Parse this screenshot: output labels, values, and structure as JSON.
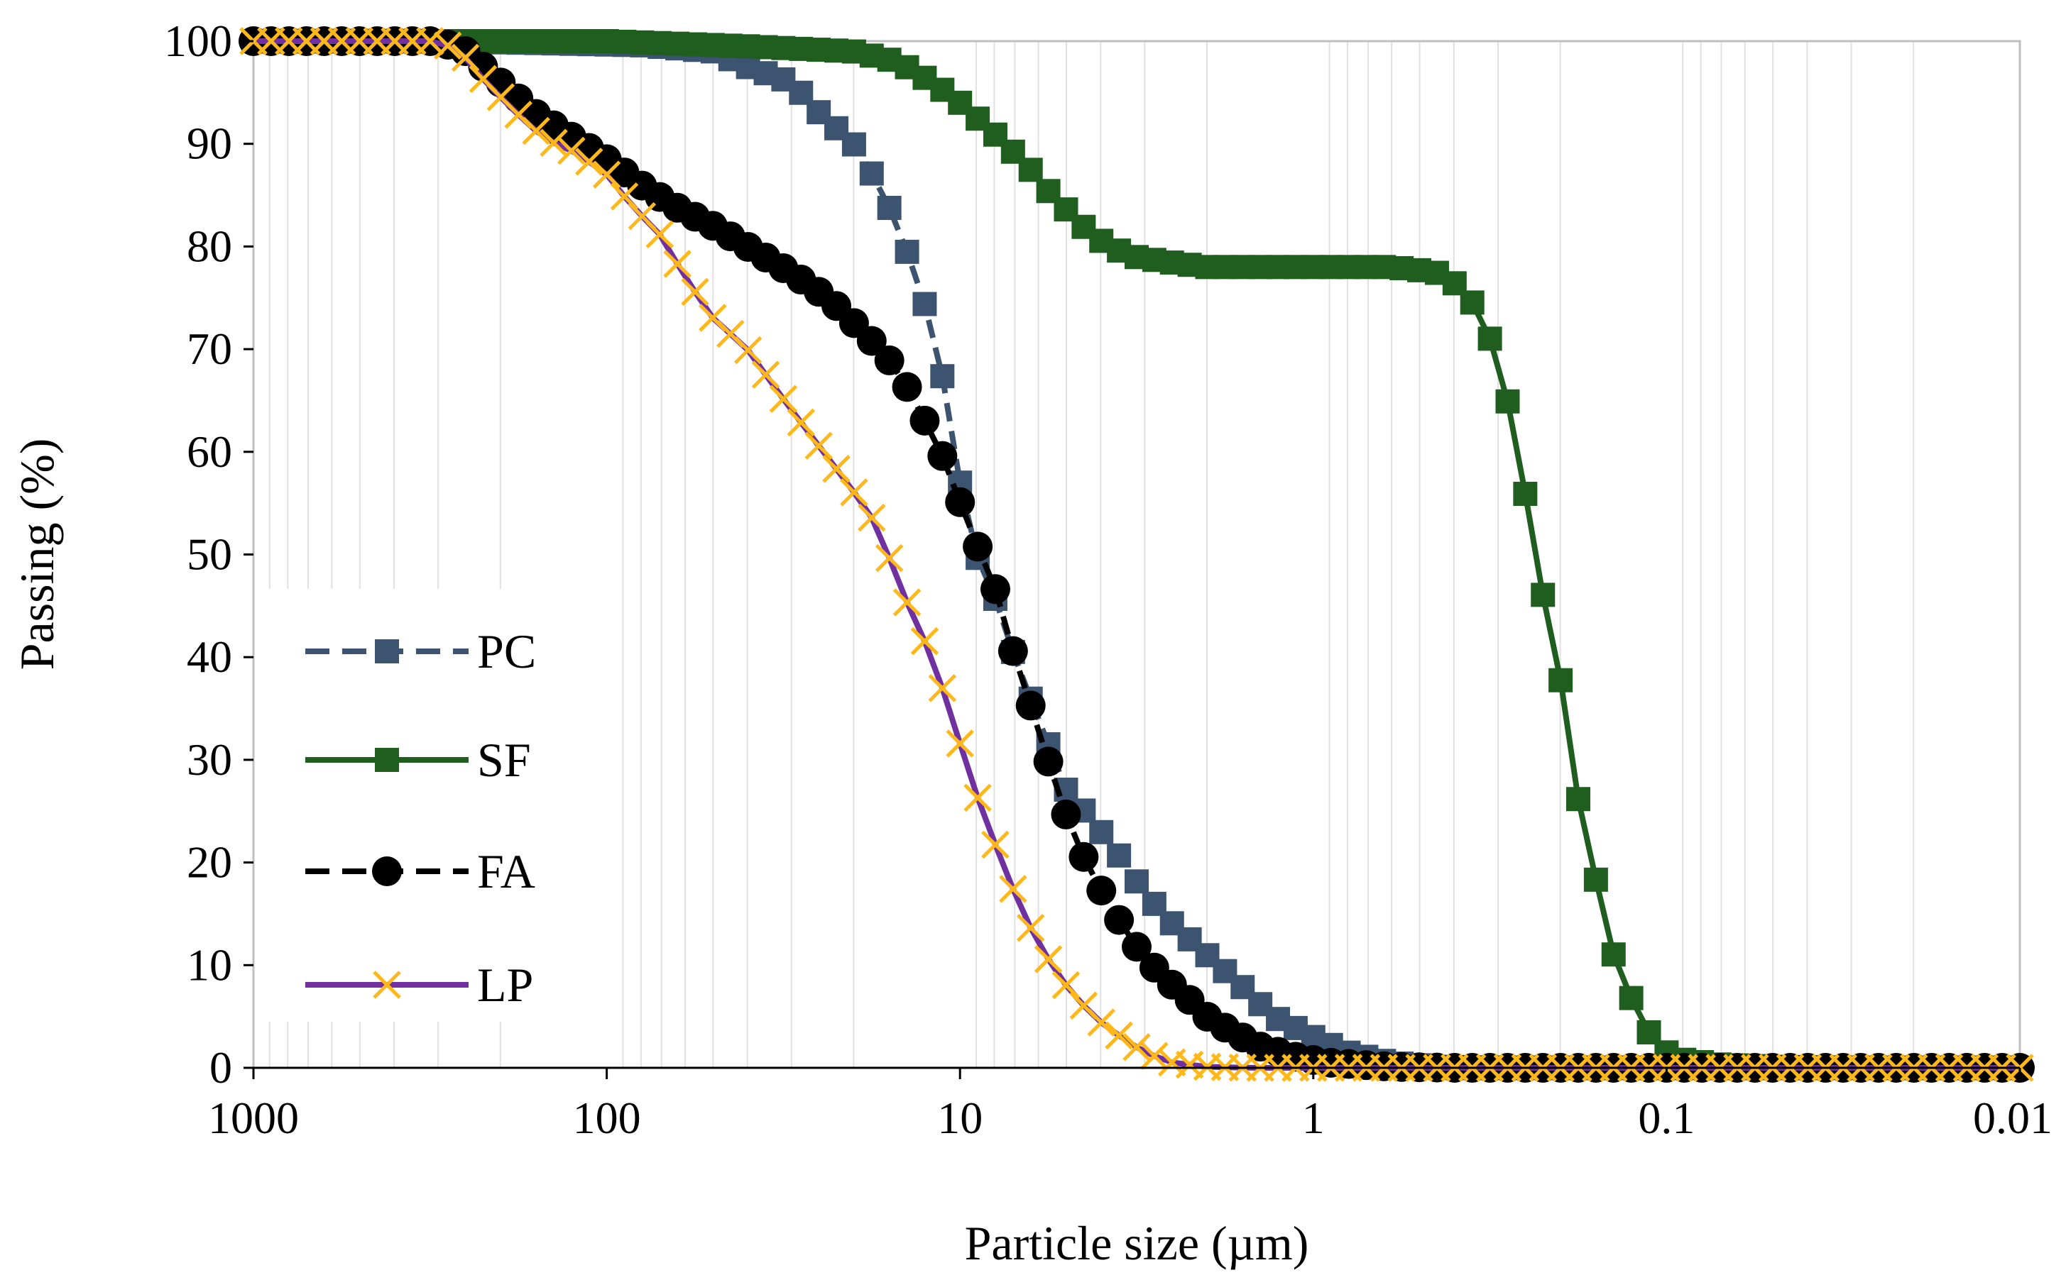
{
  "chart_data": {
    "type": "line",
    "title": "",
    "xlabel": "Particle size (µm)",
    "ylabel": "Passing (%)",
    "x_scale": "log",
    "x_reversed": true,
    "xlim": [
      1000,
      0.01
    ],
    "ylim": [
      0,
      100
    ],
    "x_ticks": [
      1000,
      100,
      10,
      1,
      0.1,
      0.01
    ],
    "x_tick_labels": [
      "1000",
      "100",
      "10",
      "1",
      "0.1",
      "0.01"
    ],
    "y_ticks": [
      0,
      10,
      20,
      30,
      40,
      50,
      60,
      70,
      80,
      90,
      100
    ],
    "y_tick_labels": [
      "0",
      "10",
      "20",
      "30",
      "40",
      "50",
      "60",
      "70",
      "80",
      "90",
      "100"
    ],
    "grid": "vertical minor log gridlines",
    "legend_position": "left",
    "series": [
      {
        "name": "PC",
        "color": "#3D5470",
        "line_style": "dashed",
        "marker": "square",
        "points": [
          [
            1000,
            100
          ],
          [
            300,
            100
          ],
          [
            150,
            99.8
          ],
          [
            80,
            99.6
          ],
          [
            50,
            99
          ],
          [
            40,
            97.5
          ],
          [
            30,
            96
          ],
          [
            25,
            93
          ],
          [
            20,
            90
          ],
          [
            17,
            86
          ],
          [
            15,
            82
          ],
          [
            13,
            76
          ],
          [
            12,
            72
          ],
          [
            11,
            66
          ],
          [
            10,
            57
          ],
          [
            9,
            50
          ],
          [
            8,
            46
          ],
          [
            7,
            40
          ],
          [
            6,
            34
          ],
          [
            5,
            27
          ],
          [
            4.2,
            24
          ],
          [
            3.6,
            21
          ],
          [
            3,
            17
          ],
          [
            2.5,
            14
          ],
          [
            2,
            11
          ],
          [
            1.6,
            8
          ],
          [
            1.3,
            5
          ],
          [
            1,
            3
          ],
          [
            0.8,
            1.5
          ],
          [
            0.6,
            0.5
          ],
          [
            0.45,
            0.1
          ],
          [
            0.3,
            0
          ],
          [
            0.01,
            0
          ]
        ]
      },
      {
        "name": "SF",
        "color": "#1F5E1F",
        "line_style": "solid",
        "marker": "square",
        "points": [
          [
            1000,
            100
          ],
          [
            100,
            100
          ],
          [
            40,
            99.5
          ],
          [
            20,
            99
          ],
          [
            15,
            98
          ],
          [
            12,
            96
          ],
          [
            10,
            94
          ],
          [
            8,
            91
          ],
          [
            6.5,
            88
          ],
          [
            5.5,
            85
          ],
          [
            4.5,
            82
          ],
          [
            3.8,
            80
          ],
          [
            3.2,
            79
          ],
          [
            2.6,
            78.5
          ],
          [
            2,
            78
          ],
          [
            1.5,
            78
          ],
          [
            1,
            78
          ],
          [
            0.6,
            78
          ],
          [
            0.45,
            77.5
          ],
          [
            0.38,
            76
          ],
          [
            0.33,
            73
          ],
          [
            0.29,
            67
          ],
          [
            0.26,
            59
          ],
          [
            0.23,
            48
          ],
          [
            0.2,
            38
          ],
          [
            0.18,
            27
          ],
          [
            0.16,
            19
          ],
          [
            0.145,
            12
          ],
          [
            0.13,
            8
          ],
          [
            0.12,
            5
          ],
          [
            0.11,
            3
          ],
          [
            0.1,
            1.5
          ],
          [
            0.09,
            0.8
          ],
          [
            0.07,
            0.3
          ],
          [
            0.05,
            0.1
          ],
          [
            0.03,
            0
          ],
          [
            0.01,
            0
          ]
        ]
      },
      {
        "name": "FA",
        "color": "#000000",
        "line_style": "dashed",
        "marker": "circle",
        "points": [
          [
            1000,
            100
          ],
          [
            300,
            100
          ],
          [
            250,
            99
          ],
          [
            200,
            96
          ],
          [
            160,
            93
          ],
          [
            130,
            91
          ],
          [
            100,
            88.5
          ],
          [
            80,
            86
          ],
          [
            65,
            84
          ],
          [
            50,
            82
          ],
          [
            40,
            80
          ],
          [
            32,
            78
          ],
          [
            26,
            76
          ],
          [
            22,
            74
          ],
          [
            18,
            71
          ],
          [
            15,
            68
          ],
          [
            13,
            64
          ],
          [
            11,
            59
          ],
          [
            9.5,
            53
          ],
          [
            8,
            47
          ],
          [
            7,
            40
          ],
          [
            6,
            33
          ],
          [
            5.2,
            26
          ],
          [
            4.4,
            20
          ],
          [
            3.8,
            16
          ],
          [
            3.2,
            12
          ],
          [
            2.7,
            9
          ],
          [
            2.3,
            7
          ],
          [
            2,
            5
          ],
          [
            1.7,
            3.5
          ],
          [
            1.4,
            2
          ],
          [
            1.1,
            1
          ],
          [
            0.9,
            0.5
          ],
          [
            0.6,
            0.1
          ],
          [
            0.4,
            0
          ],
          [
            0.01,
            0
          ]
        ]
      },
      {
        "name": "LP",
        "color": "#7030A0",
        "marker_color": "#FFB81C",
        "line_style": "solid",
        "marker": "x",
        "points": [
          [
            1000,
            100
          ],
          [
            300,
            100
          ],
          [
            260,
            99
          ],
          [
            220,
            96
          ],
          [
            180,
            93
          ],
          [
            150,
            90.5
          ],
          [
            120,
            89
          ],
          [
            100,
            87
          ],
          [
            85,
            84
          ],
          [
            70,
            81
          ],
          [
            60,
            77
          ],
          [
            50,
            73
          ],
          [
            40,
            70
          ],
          [
            33,
            66
          ],
          [
            27,
            62
          ],
          [
            22,
            58
          ],
          [
            18,
            54
          ],
          [
            16,
            50
          ],
          [
            14,
            45
          ],
          [
            12,
            40
          ],
          [
            10.5,
            34
          ],
          [
            9.3,
            28
          ],
          [
            8,
            22
          ],
          [
            7,
            17
          ],
          [
            6,
            12
          ],
          [
            5,
            8
          ],
          [
            4.2,
            5
          ],
          [
            3.5,
            3
          ],
          [
            3,
            1.5
          ],
          [
            2.5,
            0.5
          ],
          [
            2,
            0.1
          ],
          [
            1.5,
            0
          ],
          [
            0.01,
            0
          ]
        ]
      }
    ]
  }
}
